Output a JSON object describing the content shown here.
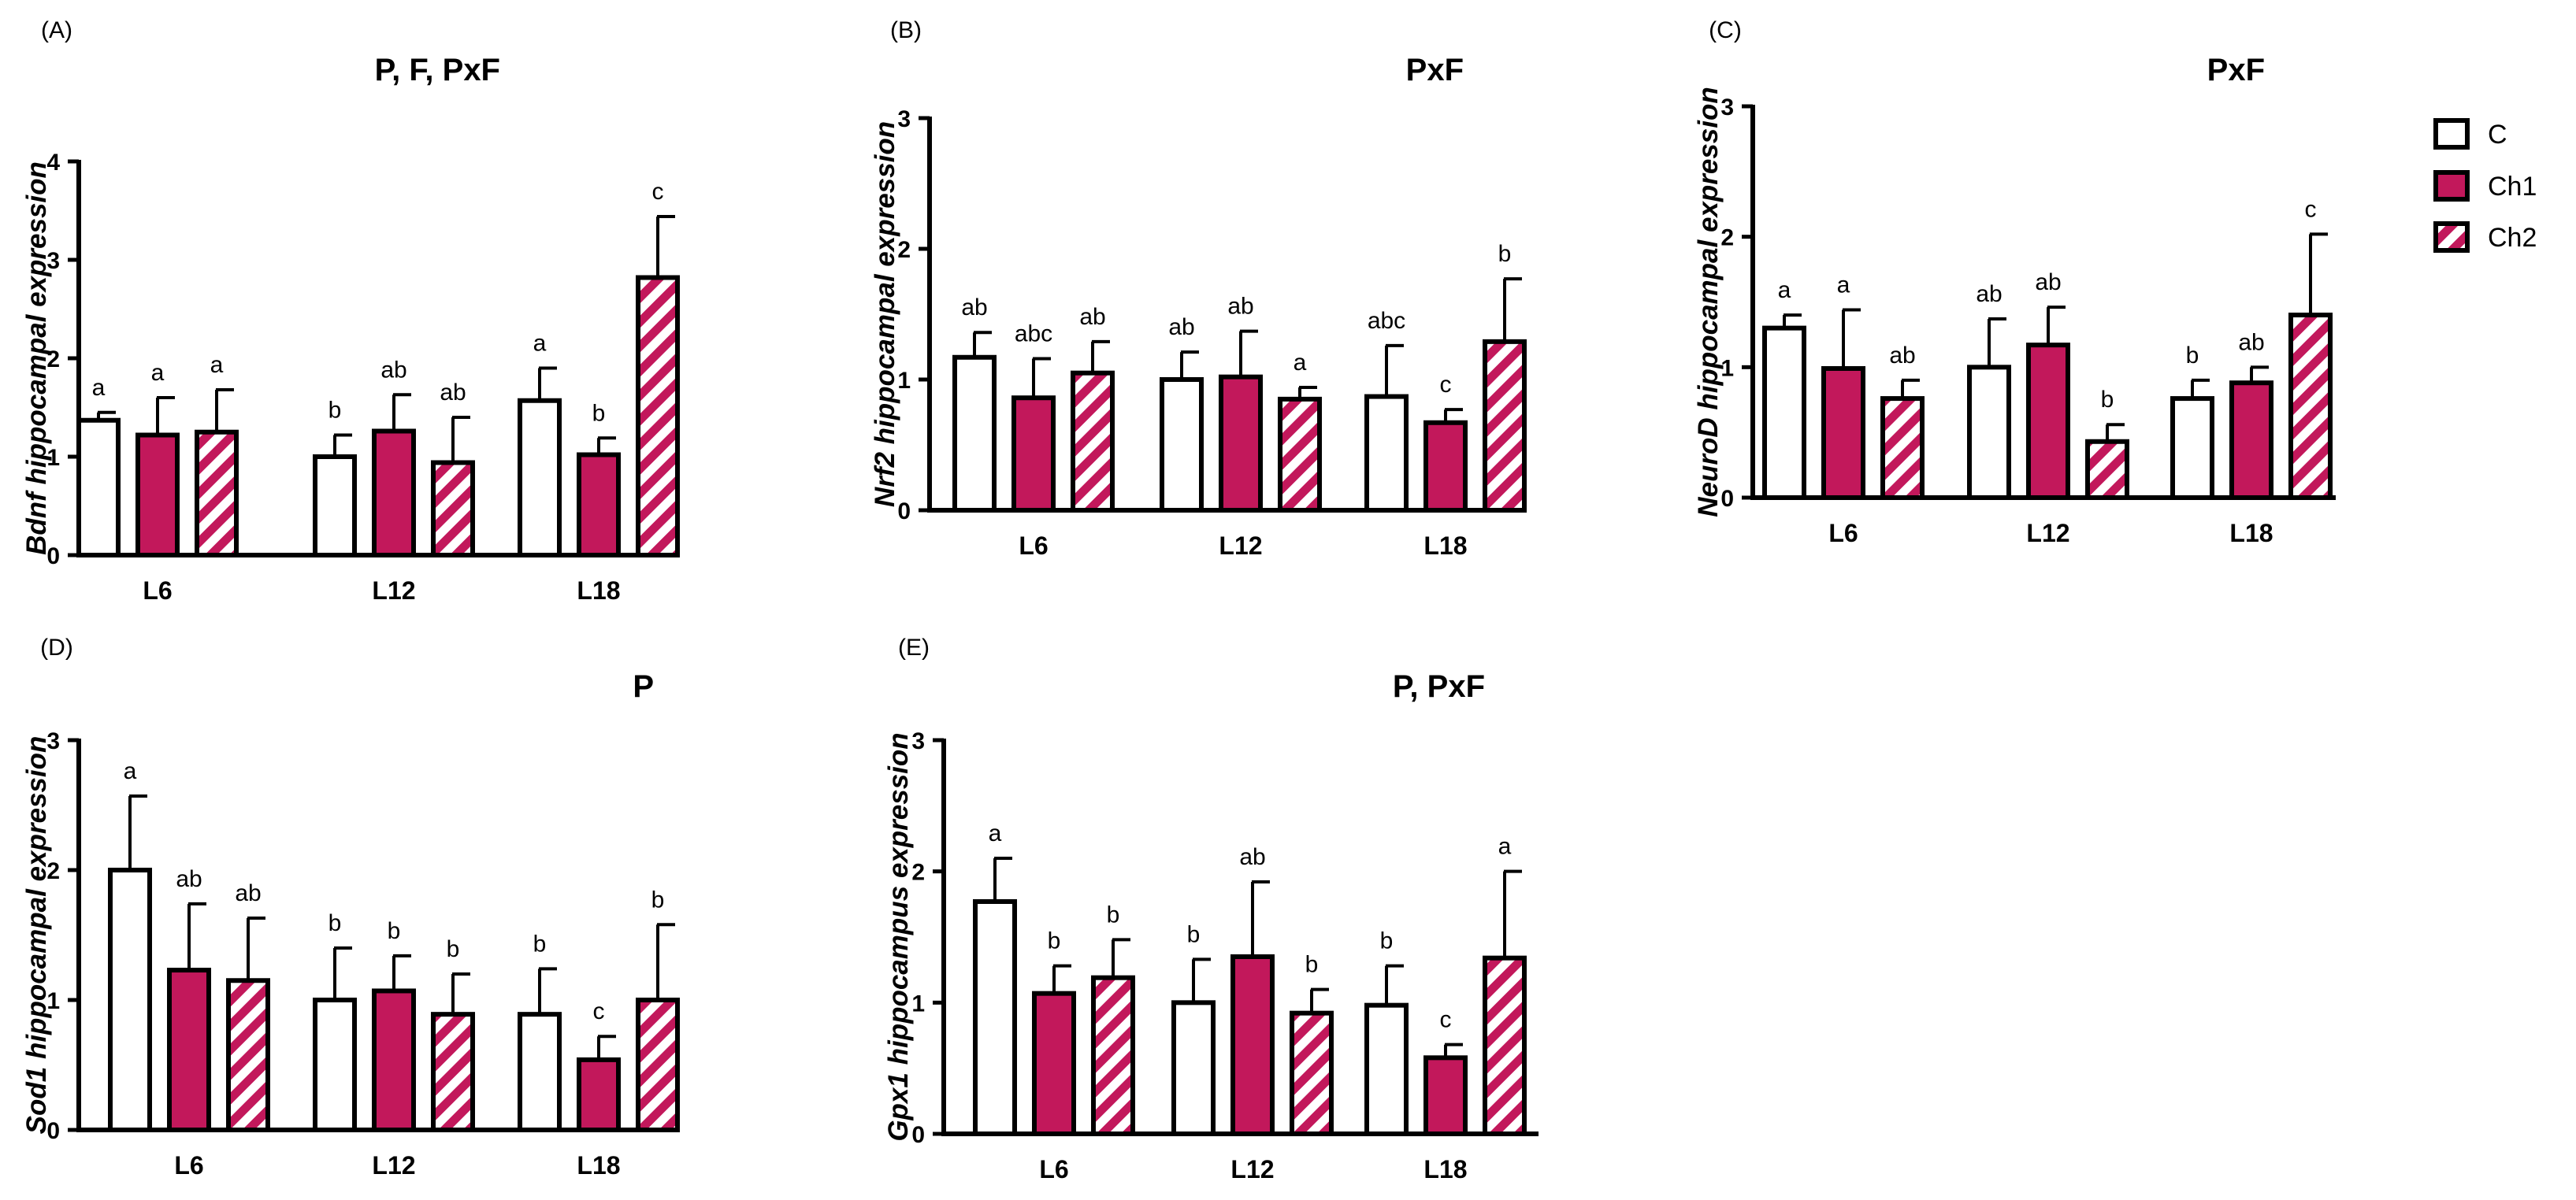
{
  "colors": {
    "control": "#ffffff",
    "ch1": "#c2185b",
    "ch2_stripe": "#c2185b",
    "ch2_bg": "#ffffff",
    "axis": "#000000"
  },
  "legend": {
    "items": [
      {
        "label": "C",
        "fill": "white"
      },
      {
        "label": "Ch1",
        "fill": "solid"
      },
      {
        "label": "Ch2",
        "fill": "hatched"
      }
    ]
  },
  "chart_data": [
    {
      "type": "bar",
      "panel": "(A)",
      "effects": "P, F, PxF",
      "ylabel_gene": "Bdnf",
      "ylabel_rest": " hippocampal expression",
      "ylim": [
        0,
        4
      ],
      "yticks": [
        "0",
        "1",
        "2",
        "3",
        "4"
      ],
      "categories": [
        "L6",
        "L12",
        "L18"
      ],
      "series": [
        {
          "name": "C",
          "values": [
            1.37,
            1.0,
            1.57
          ],
          "errors": [
            0.08,
            0.22,
            0.33
          ],
          "labels": [
            "a",
            "b",
            "a"
          ]
        },
        {
          "name": "Ch1",
          "values": [
            1.22,
            1.26,
            1.02
          ],
          "errors": [
            0.38,
            0.37,
            0.17
          ],
          "labels": [
            "a",
            "ab",
            "b"
          ]
        },
        {
          "name": "Ch2",
          "values": [
            1.25,
            0.94,
            2.82
          ],
          "errors": [
            0.43,
            0.46,
            0.62
          ],
          "labels": [
            "a",
            "ab",
            "c"
          ]
        }
      ]
    },
    {
      "type": "bar",
      "panel": "(B)",
      "effects": "PxF",
      "ylabel_gene": "Nrf2",
      "ylabel_rest": " hippocampal expression",
      "ylim": [
        0,
        3
      ],
      "yticks": [
        "0",
        "1",
        "2",
        "3"
      ],
      "categories": [
        "L6",
        "L12",
        "L18"
      ],
      "series": [
        {
          "name": "C",
          "values": [
            1.17,
            1.0,
            0.87
          ],
          "errors": [
            0.19,
            0.21,
            0.39
          ],
          "labels": [
            "ab",
            "ab",
            "abc"
          ]
        },
        {
          "name": "Ch1",
          "values": [
            0.86,
            1.02,
            0.67
          ],
          "errors": [
            0.3,
            0.35,
            0.1
          ],
          "labels": [
            "abc",
            "ab",
            "c"
          ]
        },
        {
          "name": "Ch2",
          "values": [
            1.05,
            0.85,
            1.29
          ],
          "errors": [
            0.24,
            0.09,
            0.48
          ],
          "labels": [
            "ab",
            "a",
            "b"
          ]
        }
      ]
    },
    {
      "type": "bar",
      "panel": "(C)",
      "effects": "PxF",
      "ylabel_gene": "NeuroD",
      "ylabel_rest": " hippocampal expression",
      "ylim": [
        0,
        3
      ],
      "yticks": [
        "0",
        "1",
        "2",
        "3"
      ],
      "categories": [
        "L6",
        "L12",
        "L18"
      ],
      "series": [
        {
          "name": "C",
          "values": [
            1.3,
            1.0,
            0.76
          ],
          "errors": [
            0.1,
            0.37,
            0.14
          ],
          "labels": [
            "a",
            "ab",
            "b"
          ]
        },
        {
          "name": "Ch1",
          "values": [
            0.99,
            1.17,
            0.88
          ],
          "errors": [
            0.45,
            0.29,
            0.12
          ],
          "labels": [
            "a",
            "ab",
            "ab"
          ]
        },
        {
          "name": "Ch2",
          "values": [
            0.76,
            0.43,
            1.4
          ],
          "errors": [
            0.14,
            0.13,
            0.62
          ],
          "labels": [
            "ab",
            "b",
            "c"
          ]
        }
      ]
    },
    {
      "type": "bar",
      "panel": "(D)",
      "effects": "P",
      "ylabel_gene": "Sod1",
      "ylabel_rest": " hippocampal expression",
      "ylim": [
        0,
        3
      ],
      "yticks": [
        "0",
        "1",
        "2",
        "3"
      ],
      "categories": [
        "L6",
        "L12",
        "L18"
      ],
      "series": [
        {
          "name": "C",
          "values": [
            2.0,
            1.0,
            0.89
          ],
          "errors": [
            0.57,
            0.4,
            0.35
          ],
          "labels": [
            "a",
            "b",
            "b"
          ]
        },
        {
          "name": "Ch1",
          "values": [
            1.23,
            1.07,
            0.54
          ],
          "errors": [
            0.51,
            0.27,
            0.18
          ],
          "labels": [
            "ab",
            "b",
            "c"
          ]
        },
        {
          "name": "Ch2",
          "values": [
            1.15,
            0.89,
            1.0
          ],
          "errors": [
            0.48,
            0.31,
            0.58
          ],
          "labels": [
            "ab",
            "b",
            "b"
          ]
        }
      ]
    },
    {
      "type": "bar",
      "panel": "(E)",
      "effects": "P, PxF",
      "ylabel_gene": "Gpx1",
      "ylabel_rest": " hippocampus expression",
      "ylim": [
        0,
        3
      ],
      "yticks": [
        "0",
        "1",
        "2",
        "3"
      ],
      "categories": [
        "L6",
        "L12",
        "L18"
      ],
      "series": [
        {
          "name": "C",
          "values": [
            1.77,
            1.0,
            0.98
          ],
          "errors": [
            0.33,
            0.33,
            0.3
          ],
          "labels": [
            "a",
            "b",
            "b"
          ]
        },
        {
          "name": "Ch1",
          "values": [
            1.07,
            1.35,
            0.58
          ],
          "errors": [
            0.21,
            0.57,
            0.1
          ],
          "labels": [
            "b",
            "ab",
            "c"
          ]
        },
        {
          "name": "Ch2",
          "values": [
            1.19,
            0.92,
            1.34
          ],
          "errors": [
            0.29,
            0.18,
            0.66
          ],
          "labels": [
            "b",
            "b",
            "a"
          ]
        }
      ]
    }
  ]
}
